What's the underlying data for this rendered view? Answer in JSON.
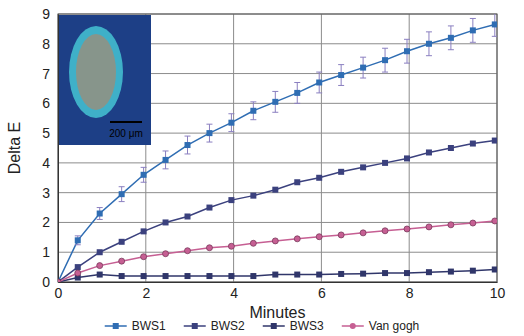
{
  "chart_data": {
    "type": "line",
    "x_label": "Minutes",
    "y_label": "Delta E",
    "annotations": [
      "200 μm"
    ],
    "x": [
      0,
      0.45,
      0.95,
      1.45,
      1.95,
      2.45,
      2.95,
      3.45,
      3.95,
      4.45,
      4.95,
      5.45,
      5.95,
      6.45,
      6.95,
      7.45,
      7.95,
      8.45,
      8.95,
      9.45,
      9.95
    ],
    "xlim": [
      0,
      10
    ],
    "xticks": [
      0,
      2,
      4,
      6,
      8,
      10
    ],
    "ylim": [
      0,
      9
    ],
    "yticks": [
      0,
      1,
      2,
      3,
      4,
      5,
      6,
      7,
      8,
      9
    ],
    "grid": true,
    "legend": "bottom",
    "series": [
      {
        "name": "BWS1",
        "color": "#2f6db3",
        "marker": "square",
        "values": [
          0,
          1.4,
          2.3,
          2.95,
          3.6,
          4.1,
          4.6,
          5.0,
          5.35,
          5.75,
          6.05,
          6.35,
          6.7,
          6.95,
          7.2,
          7.45,
          7.75,
          8.0,
          8.2,
          8.45,
          8.65
        ],
        "errors": [
          0,
          0.15,
          0.2,
          0.25,
          0.25,
          0.3,
          0.3,
          0.3,
          0.3,
          0.3,
          0.35,
          0.35,
          0.35,
          0.35,
          0.35,
          0.4,
          0.4,
          0.4,
          0.4,
          0.4,
          0.4
        ]
      },
      {
        "name": "BWS2",
        "color": "#3b417e",
        "marker": "square",
        "values": [
          0,
          0.5,
          1.0,
          1.35,
          1.7,
          2.0,
          2.2,
          2.5,
          2.75,
          2.9,
          3.1,
          3.35,
          3.5,
          3.7,
          3.85,
          4.0,
          4.15,
          4.35,
          4.5,
          4.65,
          4.75
        ]
      },
      {
        "name": "BWS3",
        "color": "#30366a",
        "marker": "square",
        "values": [
          0,
          0.15,
          0.25,
          0.2,
          0.2,
          0.2,
          0.2,
          0.2,
          0.2,
          0.2,
          0.25,
          0.25,
          0.25,
          0.27,
          0.28,
          0.3,
          0.3,
          0.33,
          0.35,
          0.38,
          0.42
        ]
      },
      {
        "name": "Van gogh",
        "color": "#c65f93",
        "marker": "circle",
        "values": [
          0,
          0.3,
          0.55,
          0.7,
          0.85,
          0.95,
          1.05,
          1.15,
          1.2,
          1.3,
          1.38,
          1.45,
          1.52,
          1.58,
          1.65,
          1.72,
          1.78,
          1.85,
          1.92,
          1.98,
          2.05
        ]
      }
    ]
  }
}
